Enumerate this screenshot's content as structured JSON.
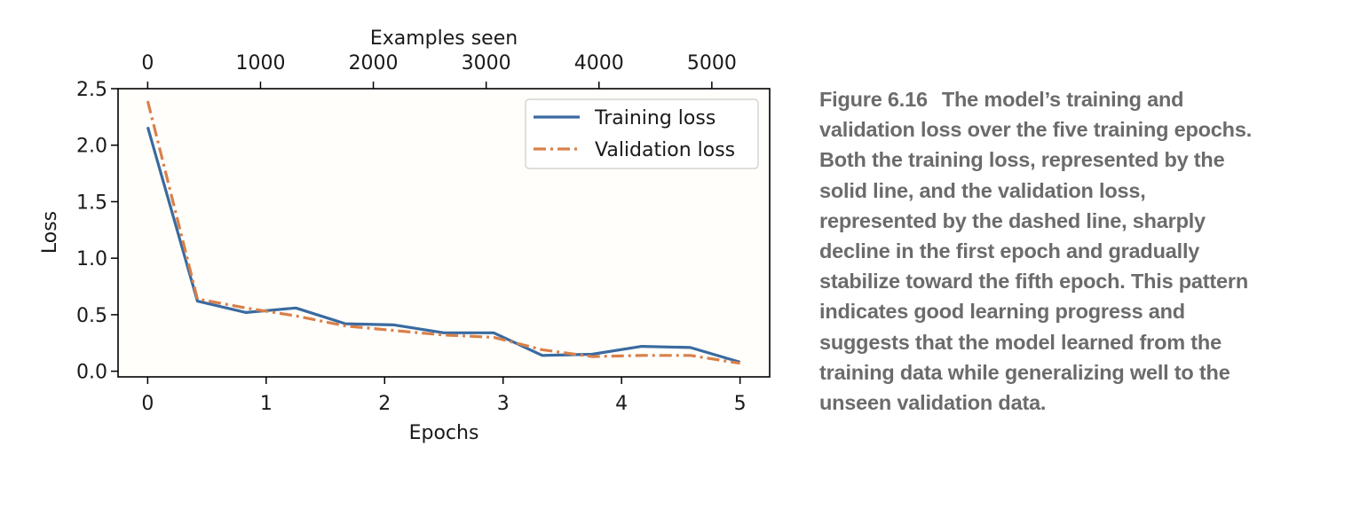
{
  "chart_data": {
    "type": "line",
    "title": "",
    "xlabel": "Epochs",
    "ylabel": "Loss",
    "secondary_xlabel": "Examples seen",
    "xlim": [
      -0.25,
      5.25
    ],
    "ylim": [
      -0.05,
      2.5
    ],
    "xticks": [
      0,
      1,
      2,
      3,
      4,
      5
    ],
    "yticks": [
      0.0,
      0.5,
      1.0,
      1.5,
      2.0,
      2.5
    ],
    "ytick_labels": [
      "0.0",
      "0.5",
      "1.0",
      "1.5",
      "2.0",
      "2.5"
    ],
    "top_xlim": [
      -262.5,
      5512.5
    ],
    "top_xticks": [
      0,
      1000,
      2000,
      3000,
      4000,
      5000
    ],
    "grid": false,
    "legend_position": "top-right",
    "series": [
      {
        "name": "Training loss",
        "style": "solid",
        "color": "#3a6aa0",
        "x": [
          0,
          0.42,
          0.83,
          1.25,
          1.67,
          2.08,
          2.5,
          2.92,
          3.33,
          3.75,
          4.17,
          4.58,
          5.0
        ],
        "values": [
          2.16,
          0.62,
          0.52,
          0.56,
          0.42,
          0.41,
          0.34,
          0.34,
          0.14,
          0.15,
          0.22,
          0.21,
          0.08
        ]
      },
      {
        "name": "Validation loss",
        "style": "dashdot",
        "color": "#d9804a",
        "x": [
          0,
          0.42,
          0.83,
          1.25,
          1.67,
          2.08,
          2.5,
          2.92,
          3.33,
          3.75,
          4.17,
          4.58,
          5.0
        ],
        "values": [
          2.39,
          0.64,
          0.56,
          0.49,
          0.4,
          0.36,
          0.32,
          0.3,
          0.19,
          0.13,
          0.14,
          0.14,
          0.07
        ]
      }
    ]
  },
  "caption": {
    "label": "Figure 6.16",
    "text": "The model’s training and validation loss over the five training epochs. Both the training loss, represented by the solid line, and the validation loss, represented by the dashed line, sharply decline in the first epoch and gradually stabilize toward the fifth epoch. This pattern indicates good learning progress and suggests that the model learned from the training data while generalizing well to the unseen validation data."
  }
}
